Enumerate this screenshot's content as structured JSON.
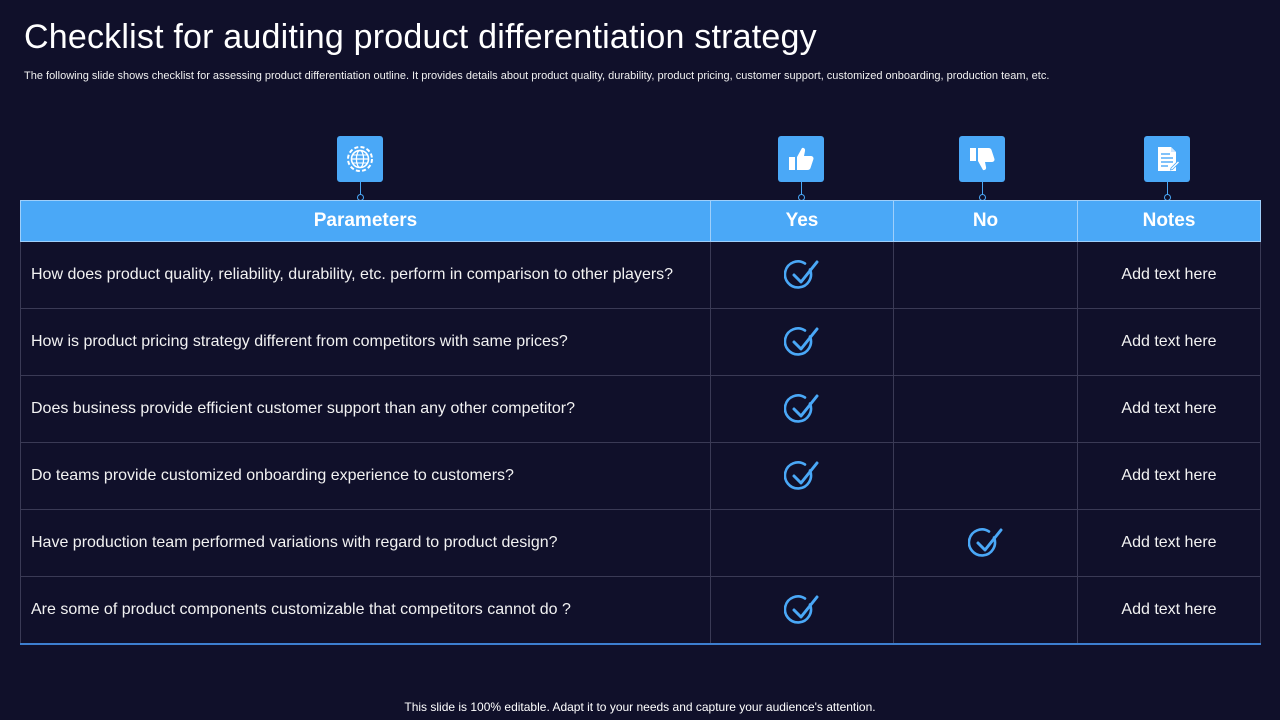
{
  "slide": {
    "title": "Checklist for auditing product differentiation strategy",
    "subtitle": "The following slide shows checklist for assessing product differentiation outline. It provides details about product quality, durability, product pricing, customer support, customized onboarding, production team, etc.",
    "footer": "This slide is 100% editable. Adapt it to your needs and capture your audience's attention."
  },
  "icons": {
    "parameters": "gear-globe-icon",
    "yes": "thumbs-up-icon",
    "no": "thumbs-down-icon",
    "notes": "document-icon"
  },
  "colors": {
    "background": "#10102a",
    "accent": "#4aa8f7",
    "check": "#4aa8f7"
  },
  "table": {
    "headers": {
      "parameters": "Parameters",
      "yes": "Yes",
      "no": "No",
      "notes": "Notes"
    },
    "rows": [
      {
        "parameter": "How does product quality, reliability, durability, etc. perform in comparison to other players?",
        "answer": "yes",
        "notes": "Add text here"
      },
      {
        "parameter": "How is product pricing strategy different from competitors with same prices?",
        "answer": "yes",
        "notes": "Add text here"
      },
      {
        "parameter": "Does business provide efficient customer support than any other competitor?",
        "answer": "yes",
        "notes": "Add text here"
      },
      {
        "parameter": "Do teams provide customized onboarding experience to customers?",
        "answer": "yes",
        "notes": "Add text here"
      },
      {
        "parameter": "Have production team performed variations with regard to product design?",
        "answer": "no",
        "notes": "Add text here"
      },
      {
        "parameter": "Are some of product components customizable that competitors cannot do ?",
        "answer": "yes",
        "notes": "Add text here"
      }
    ]
  }
}
